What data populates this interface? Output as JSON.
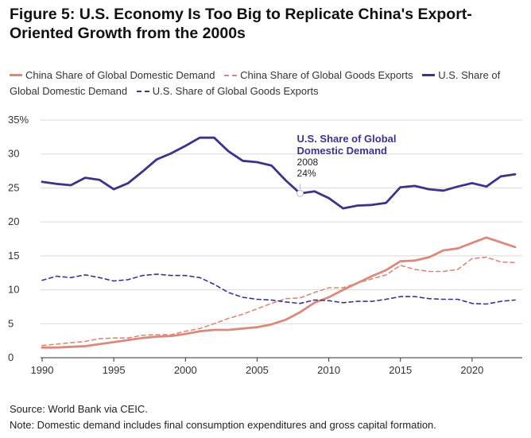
{
  "title": {
    "figure": "Figure 5:",
    "text": "U.S. Economy Is Too Big to Replicate China's Export-Oriented Growth from the 2000s"
  },
  "legend": [
    {
      "label": "China Share of Global Domestic Demand",
      "style": "solid",
      "color": "#d98a7c"
    },
    {
      "label": "China Share of Global Goods Exports",
      "style": "dashed",
      "color": "#d98a7c"
    },
    {
      "label": "U.S. Share of Global Domestic Demand",
      "style": "solid",
      "color": "#3c3585"
    },
    {
      "label": "U.S. Share of Global Goods Exports",
      "style": "dashed",
      "color": "#3c3585"
    }
  ],
  "footer": {
    "source": "Source: World Bank via CEIC.",
    "note": "Note: Domestic demand includes final consumption expenditures and gross capital formation."
  },
  "chart_data": {
    "type": "line",
    "x": [
      1990,
      1991,
      1992,
      1993,
      1994,
      1995,
      1996,
      1997,
      1998,
      1999,
      2000,
      2001,
      2002,
      2003,
      2004,
      2005,
      2006,
      2007,
      2008,
      2009,
      2010,
      2011,
      2012,
      2013,
      2014,
      2015,
      2016,
      2017,
      2018,
      2019,
      2020,
      2021,
      2022,
      2023
    ],
    "xticks": [
      1990,
      1995,
      2000,
      2005,
      2010,
      2015,
      2020
    ],
    "xtick_labels": [
      "1990",
      "1995",
      "2000",
      "2005",
      "2010",
      "2015",
      "2020"
    ],
    "xlim": [
      1990,
      2023.5
    ],
    "ylim": [
      0,
      35
    ],
    "yticks": [
      0,
      5,
      10,
      15,
      20,
      25,
      30,
      35
    ],
    "ytick_labels": [
      "0",
      "5",
      "10",
      "15",
      "20",
      "25",
      "30",
      "35%"
    ],
    "grid": "horizontal",
    "legend_position": "top",
    "series": [
      {
        "name": "China Share of Global Domestic Demand",
        "style": "solid",
        "color": "#d98a7c",
        "values": [
          1.5,
          1.5,
          1.6,
          1.7,
          2.0,
          2.3,
          2.6,
          2.9,
          3.1,
          3.2,
          3.5,
          3.9,
          4.1,
          4.1,
          4.3,
          4.5,
          4.9,
          5.6,
          6.7,
          8.1,
          8.9,
          10.0,
          11.0,
          12.0,
          12.9,
          14.2,
          14.3,
          14.8,
          15.8,
          16.1,
          16.9,
          17.7,
          17.0,
          16.3
        ]
      },
      {
        "name": "China Share of Global Goods Exports",
        "style": "dashed",
        "color": "#d98a7c",
        "values": [
          1.8,
          2.0,
          2.2,
          2.4,
          2.8,
          2.9,
          2.9,
          3.3,
          3.4,
          3.4,
          3.9,
          4.3,
          5.0,
          5.8,
          6.4,
          7.2,
          8.0,
          8.7,
          8.8,
          9.6,
          10.3,
          10.3,
          11.0,
          11.6,
          12.2,
          13.6,
          13.0,
          12.7,
          12.7,
          13.0,
          14.6,
          14.8,
          14.1,
          14.0
        ]
      },
      {
        "name": "U.S. Share of Global Domestic Demand",
        "style": "solid",
        "color": "#3c3585",
        "values": [
          25.9,
          25.6,
          25.4,
          26.5,
          26.2,
          24.8,
          25.7,
          27.4,
          29.2,
          30.1,
          31.2,
          32.4,
          32.4,
          30.4,
          29.0,
          28.8,
          28.3,
          26.1,
          24.2,
          24.5,
          23.5,
          22.0,
          22.4,
          22.5,
          22.8,
          25.1,
          25.3,
          24.8,
          24.6,
          25.2,
          25.7,
          25.2,
          26.7,
          27.0
        ]
      },
      {
        "name": "U.S. Share of Global Goods Exports",
        "style": "dashed",
        "color": "#3c3585",
        "values": [
          11.4,
          12.0,
          11.8,
          12.2,
          11.8,
          11.3,
          11.5,
          12.1,
          12.3,
          12.1,
          12.1,
          11.8,
          10.8,
          9.6,
          8.9,
          8.6,
          8.5,
          8.2,
          8.0,
          8.5,
          8.4,
          8.1,
          8.3,
          8.3,
          8.6,
          9.0,
          9.0,
          8.7,
          8.6,
          8.6,
          8.0,
          7.9,
          8.3,
          8.5
        ]
      }
    ],
    "annotation": {
      "title_line1": "U.S. Share of Global",
      "title_line2": "Domestic Demand",
      "year": "2008",
      "value": "24%",
      "point": {
        "x": 2008,
        "y": 24.2
      }
    }
  }
}
